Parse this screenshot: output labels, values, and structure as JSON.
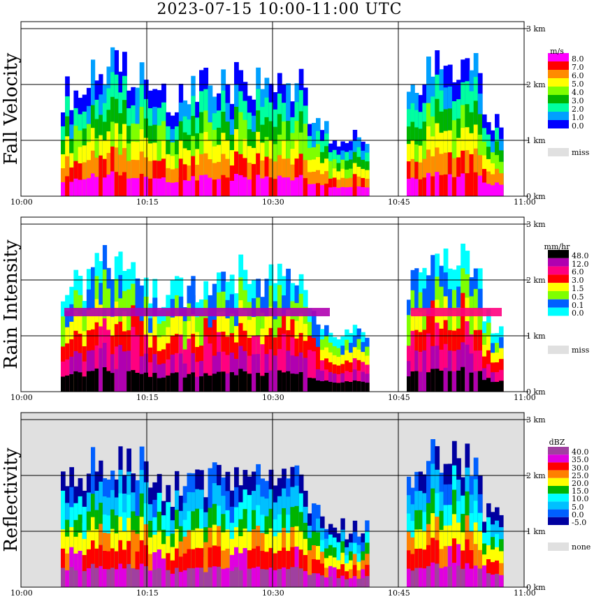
{
  "title": "2023-07-15  10:00-11:00 UTC",
  "x_tick_labels": [
    "10:00",
    "10:15",
    "10:30",
    "10:45",
    "11:00"
  ],
  "height_labels": [
    "0 km",
    "1 km",
    "2 km",
    "3 km"
  ],
  "chart_data": [
    {
      "type": "heatmap",
      "ylabel": "Fall Velocity",
      "unit": "m/s",
      "legend": [
        {
          "label": "8.0",
          "color": "#ff00ff"
        },
        {
          "label": "7.0",
          "color": "#ff0000"
        },
        {
          "label": "6.0",
          "color": "#ff8c00"
        },
        {
          "label": "5.0",
          "color": "#ffff00"
        },
        {
          "label": "4.0",
          "color": "#7fff00"
        },
        {
          "label": "3.0",
          "color": "#00b400"
        },
        {
          "label": "2.0",
          "color": "#00ffa0"
        },
        {
          "label": "1.0",
          "color": "#00a0ff"
        },
        {
          "label": "0.0",
          "color": "#0000ff"
        }
      ],
      "missing_label": "miss",
      "missing_color": "#e0e0e0"
    },
    {
      "type": "heatmap",
      "ylabel": "Rain Intensity",
      "unit": "mm/hr",
      "legend": [
        {
          "label": "48.0",
          "color": "#000000"
        },
        {
          "label": "12.0",
          "color": "#b000b0"
        },
        {
          "label": "6.0",
          "color": "#ff0080"
        },
        {
          "label": "3.0",
          "color": "#ff0000"
        },
        {
          "label": "1.5",
          "color": "#ffff00"
        },
        {
          "label": "0.5",
          "color": "#7fff00"
        },
        {
          "label": "0.1",
          "color": "#0060ff"
        },
        {
          "label": "0.0",
          "color": "#00ffff"
        }
      ],
      "missing_label": "miss",
      "missing_color": "#e0e0e0"
    },
    {
      "type": "heatmap",
      "ylabel": "Reflectivity",
      "unit": "dBZ",
      "legend": [
        {
          "label": "40.0",
          "color": "#a040a0"
        },
        {
          "label": "35.0",
          "color": "#e000e0"
        },
        {
          "label": "30.0",
          "color": "#ff0000"
        },
        {
          "label": "25.0",
          "color": "#ff8000"
        },
        {
          "label": "20.0",
          "color": "#ffff00"
        },
        {
          "label": "15.0",
          "color": "#00b400"
        },
        {
          "label": "10.0",
          "color": "#00ffff"
        },
        {
          "label": "5.0",
          "color": "#00c0ff"
        },
        {
          "label": "0.0",
          "color": "#0060ff"
        },
        {
          "label": "-5.0",
          "color": "#0000a0"
        }
      ],
      "missing_label": "none",
      "missing_color": "#e0e0e0"
    }
  ]
}
